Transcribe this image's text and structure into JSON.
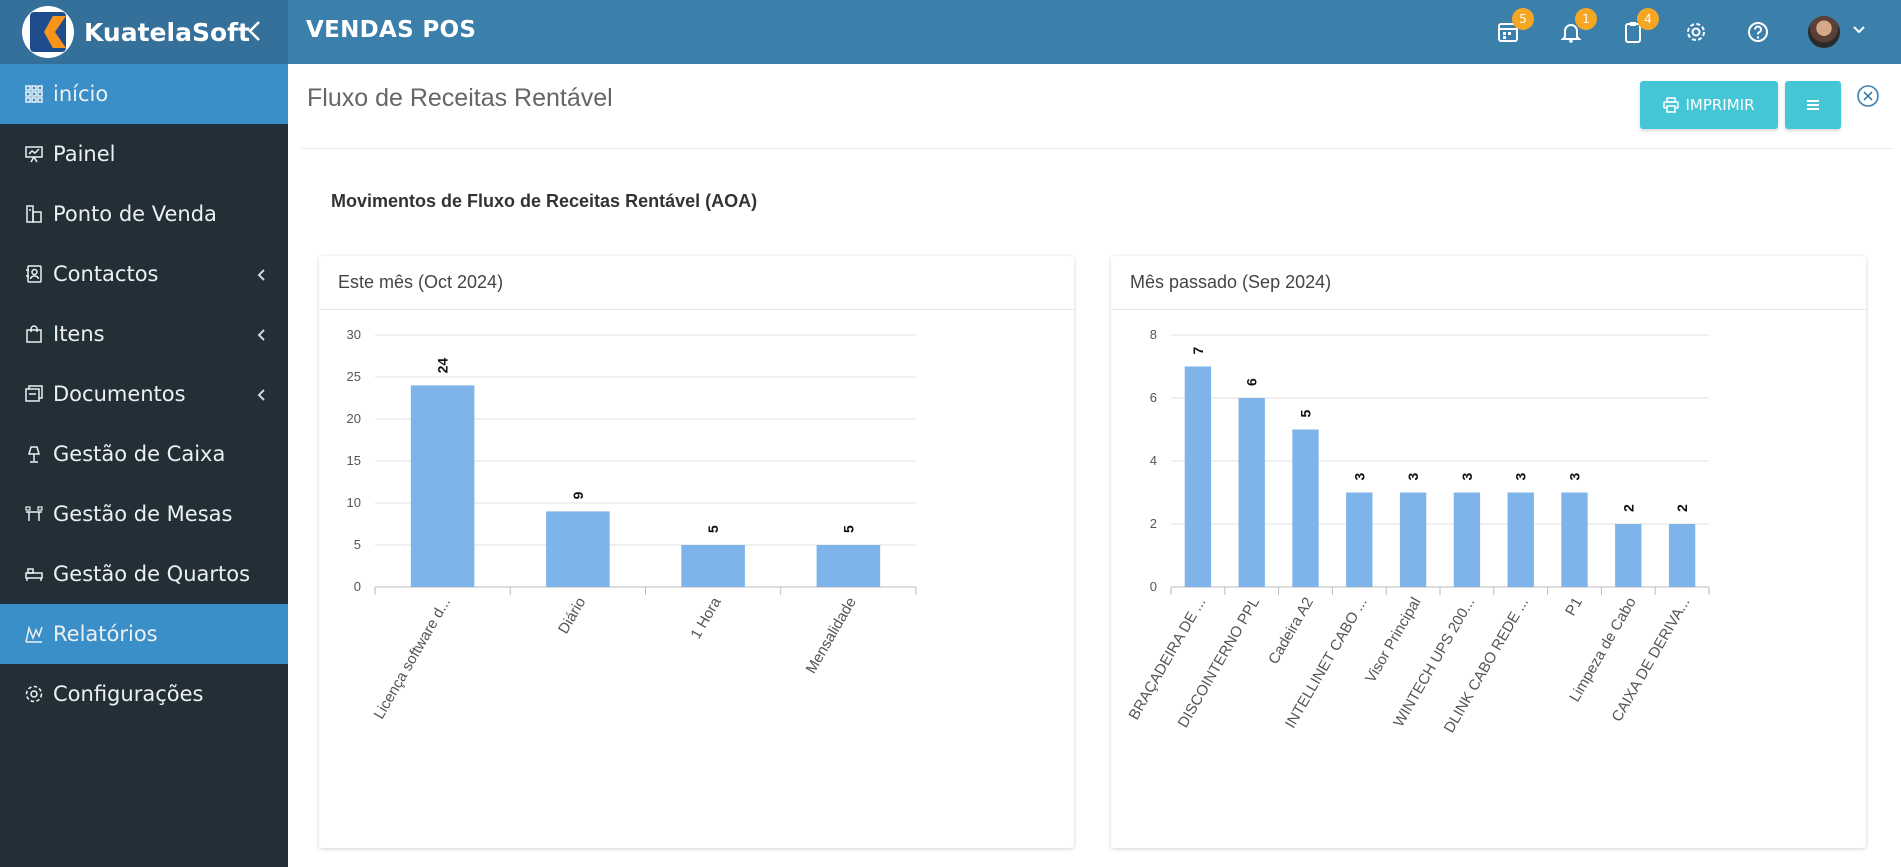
{
  "brand": {
    "name": "KuatelaSoft"
  },
  "app": {
    "title": "VENDAS POS"
  },
  "topbar": {
    "badges": {
      "calendar": "5",
      "notifications": "1",
      "clipboard": "4"
    }
  },
  "sidebar": {
    "items": [
      {
        "label": "início",
        "icon": "grid-icon",
        "active": true,
        "submenu": false
      },
      {
        "label": "Painel",
        "icon": "presentation-icon",
        "active": false,
        "submenu": false
      },
      {
        "label": "Ponto de Venda",
        "icon": "pos-icon",
        "active": false,
        "submenu": false
      },
      {
        "label": "Contactos",
        "icon": "contacts-icon",
        "active": false,
        "submenu": true
      },
      {
        "label": "Itens",
        "icon": "shopping-bag-icon",
        "active": false,
        "submenu": true
      },
      {
        "label": "Documentos",
        "icon": "documents-icon",
        "active": false,
        "submenu": true
      },
      {
        "label": "Gestão de Caixa",
        "icon": "lamp-icon",
        "active": false,
        "submenu": false
      },
      {
        "label": "Gestão de Mesas",
        "icon": "table-icon",
        "active": false,
        "submenu": false
      },
      {
        "label": "Gestão de Quartos",
        "icon": "bed-icon",
        "active": false,
        "submenu": false
      },
      {
        "label": "Relatórios",
        "icon": "reports-icon",
        "active": true,
        "submenu": false
      },
      {
        "label": "Configurações",
        "icon": "gear-icon",
        "active": false,
        "submenu": false
      }
    ]
  },
  "page": {
    "title": "Fluxo de Receitas Rentável",
    "print_label": "IMPRIMIR",
    "section_title": "Movimentos de Fluxo de Receitas Rentável (AOA)"
  },
  "colors": {
    "bar": "#7eb4e9",
    "topbar": "#3b7fab",
    "sidebar": "#222f36",
    "active": "#3b8fc8",
    "button": "#45c6d6"
  },
  "chart_data": [
    {
      "type": "bar",
      "title": "Este mês (Oct 2024)",
      "categories": [
        "Licença software d...",
        "Diário",
        "1 Hora",
        "Mensalidade"
      ],
      "values": [
        24,
        9,
        5,
        5
      ],
      "ylim": [
        0,
        30
      ],
      "yticks": [
        0,
        5,
        10,
        15,
        20,
        25,
        30
      ],
      "grid": true
    },
    {
      "type": "bar",
      "title": "Mês passado (Sep 2024)",
      "categories": [
        "BRAÇADEIRA DE ...",
        "DISCOINTERNO PPL",
        "Cadeira A2",
        "INTELLINET CABO ...",
        "Visor Principal",
        "WINTECH UPS 200...",
        "DLINK CABO REDE ...",
        "P1",
        "Limpeza de Cabo",
        "CAIXA DE DERIVA..."
      ],
      "values": [
        7,
        6,
        5,
        3,
        3,
        3,
        3,
        3,
        2,
        2
      ],
      "ylim": [
        0,
        8
      ],
      "yticks": [
        0,
        2,
        4,
        6,
        8
      ],
      "grid": true
    }
  ]
}
